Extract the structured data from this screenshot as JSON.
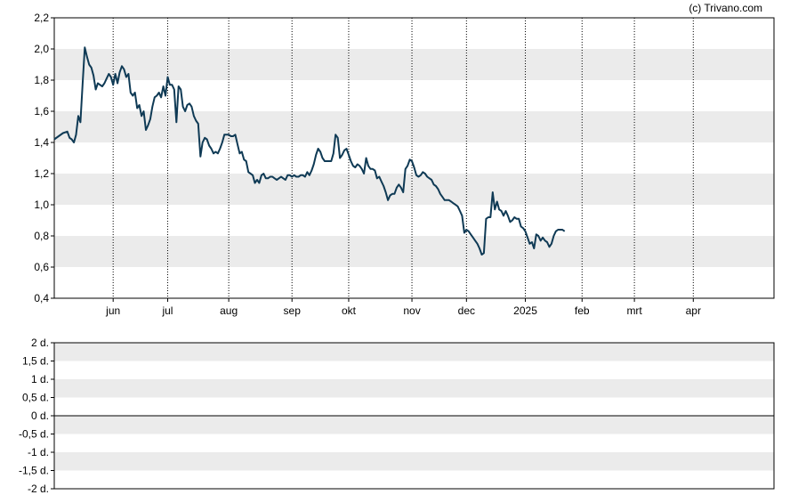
{
  "copyright": "(c) Trivano.com",
  "colors": {
    "line": "#0f3a55",
    "band": "#ebebeb",
    "frame": "#000000",
    "grid": "#000000"
  },
  "chart_data": [
    {
      "type": "line",
      "x_tick_labels": [
        "jun",
        "jul",
        "aug",
        "sep",
        "okt",
        "nov",
        "dec",
        "2025",
        "feb",
        "mrt",
        "apr"
      ],
      "y_tick_labels": [
        "0,4",
        "0,6",
        "0,8",
        "1,0",
        "1,2",
        "1,4",
        "1,6",
        "1,8",
        "2,0",
        "2,2"
      ],
      "ylim": [
        0.4,
        2.2
      ],
      "xlim": [
        0,
        330
      ],
      "x_tick_positions": [
        27,
        52,
        80,
        109,
        135,
        164,
        189,
        216,
        242,
        266,
        293
      ],
      "grid": "dotted vertical at month boundaries, alternating horizontal bands",
      "series": [
        {
          "points": [
            [
              0,
              1.42
            ],
            [
              2,
              1.44
            ],
            [
              4,
              1.46
            ],
            [
              6,
              1.47
            ],
            [
              7,
              1.43
            ],
            [
              8,
              1.42
            ],
            [
              9,
              1.4
            ],
            [
              10,
              1.45
            ],
            [
              11,
              1.57
            ],
            [
              12,
              1.53
            ],
            [
              13,
              1.78
            ],
            [
              14,
              2.01
            ],
            [
              15,
              1.95
            ],
            [
              16,
              1.9
            ],
            [
              17,
              1.88
            ],
            [
              18,
              1.83
            ],
            [
              19,
              1.74
            ],
            [
              20,
              1.78
            ],
            [
              21,
              1.77
            ],
            [
              22,
              1.76
            ],
            [
              23,
              1.78
            ],
            [
              24,
              1.81
            ],
            [
              25,
              1.84
            ],
            [
              26,
              1.82
            ],
            [
              27,
              1.77
            ],
            [
              28,
              1.84
            ],
            [
              29,
              1.78
            ],
            [
              30,
              1.85
            ],
            [
              31,
              1.89
            ],
            [
              32,
              1.87
            ],
            [
              33,
              1.82
            ],
            [
              34,
              1.84
            ],
            [
              35,
              1.72
            ],
            [
              36,
              1.7
            ],
            [
              37,
              1.72
            ],
            [
              38,
              1.62
            ],
            [
              39,
              1.64
            ],
            [
              40,
              1.57
            ],
            [
              41,
              1.6
            ],
            [
              42,
              1.48
            ],
            [
              43,
              1.51
            ],
            [
              44,
              1.55
            ],
            [
              45,
              1.63
            ],
            [
              46,
              1.69
            ],
            [
              47,
              1.7
            ],
            [
              48,
              1.72
            ],
            [
              49,
              1.69
            ],
            [
              50,
              1.76
            ],
            [
              51,
              1.7
            ],
            [
              52,
              1.82
            ],
            [
              53,
              1.77
            ],
            [
              54,
              1.77
            ],
            [
              55,
              1.74
            ],
            [
              56,
              1.53
            ],
            [
              57,
              1.76
            ],
            [
              58,
              1.74
            ],
            [
              59,
              1.63
            ],
            [
              60,
              1.6
            ],
            [
              61,
              1.64
            ],
            [
              62,
              1.65
            ],
            [
              63,
              1.63
            ],
            [
              64,
              1.57
            ],
            [
              65,
              1.54
            ],
            [
              66,
              1.52
            ],
            [
              67,
              1.31
            ],
            [
              68,
              1.4
            ],
            [
              69,
              1.43
            ],
            [
              70,
              1.42
            ],
            [
              71,
              1.38
            ],
            [
              72,
              1.36
            ],
            [
              73,
              1.33
            ],
            [
              74,
              1.34
            ],
            [
              75,
              1.33
            ],
            [
              76,
              1.36
            ],
            [
              77,
              1.4
            ],
            [
              78,
              1.45
            ],
            [
              79,
              1.45
            ],
            [
              80,
              1.45
            ],
            [
              81,
              1.44
            ],
            [
              82,
              1.44
            ],
            [
              83,
              1.45
            ],
            [
              84,
              1.39
            ],
            [
              85,
              1.33
            ],
            [
              86,
              1.34
            ],
            [
              87,
              1.29
            ],
            [
              88,
              1.28
            ],
            [
              89,
              1.21
            ],
            [
              90,
              1.2
            ],
            [
              91,
              1.19
            ],
            [
              92,
              1.14
            ],
            [
              93,
              1.16
            ],
            [
              94,
              1.14
            ],
            [
              95,
              1.19
            ],
            [
              96,
              1.2
            ],
            [
              97,
              1.17
            ],
            [
              98,
              1.17
            ],
            [
              99,
              1.18
            ],
            [
              100,
              1.18
            ],
            [
              101,
              1.17
            ],
            [
              102,
              1.16
            ],
            [
              103,
              1.17
            ],
            [
              104,
              1.18
            ],
            [
              105,
              1.17
            ],
            [
              106,
              1.16
            ],
            [
              107,
              1.19
            ],
            [
              108,
              1.19
            ],
            [
              109,
              1.18
            ],
            [
              110,
              1.19
            ],
            [
              111,
              1.18
            ],
            [
              112,
              1.18
            ],
            [
              113,
              1.19
            ],
            [
              114,
              1.19
            ],
            [
              115,
              1.18
            ],
            [
              116,
              1.21
            ],
            [
              117,
              1.19
            ],
            [
              118,
              1.22
            ],
            [
              119,
              1.26
            ],
            [
              120,
              1.32
            ],
            [
              121,
              1.36
            ],
            [
              122,
              1.34
            ],
            [
              123,
              1.3
            ],
            [
              124,
              1.28
            ],
            [
              125,
              1.28
            ],
            [
              126,
              1.28
            ],
            [
              127,
              1.28
            ],
            [
              128,
              1.33
            ],
            [
              129,
              1.45
            ],
            [
              130,
              1.43
            ],
            [
              131,
              1.3
            ],
            [
              132,
              1.32
            ],
            [
              133,
              1.35
            ],
            [
              134,
              1.36
            ],
            [
              135,
              1.32
            ],
            [
              136,
              1.28
            ],
            [
              137,
              1.25
            ],
            [
              138,
              1.24
            ],
            [
              139,
              1.26
            ],
            [
              140,
              1.25
            ],
            [
              141,
              1.23
            ],
            [
              142,
              1.2
            ],
            [
              143,
              1.3
            ],
            [
              144,
              1.25
            ],
            [
              145,
              1.23
            ],
            [
              146,
              1.23
            ],
            [
              147,
              1.22
            ],
            [
              148,
              1.17
            ],
            [
              149,
              1.18
            ],
            [
              150,
              1.15
            ],
            [
              151,
              1.12
            ],
            [
              152,
              1.08
            ],
            [
              153,
              1.03
            ],
            [
              154,
              1.06
            ],
            [
              155,
              1.07
            ],
            [
              156,
              1.07
            ],
            [
              157,
              1.11
            ],
            [
              158,
              1.13
            ],
            [
              159,
              1.11
            ],
            [
              160,
              1.08
            ],
            [
              161,
              1.23
            ],
            [
              162,
              1.25
            ],
            [
              163,
              1.29
            ],
            [
              164,
              1.28
            ],
            [
              165,
              1.24
            ],
            [
              166,
              1.19
            ],
            [
              167,
              1.18
            ],
            [
              168,
              1.19
            ],
            [
              169,
              1.21
            ],
            [
              170,
              1.2
            ],
            [
              171,
              1.18
            ],
            [
              172,
              1.17
            ],
            [
              173,
              1.16
            ],
            [
              174,
              1.13
            ],
            [
              175,
              1.12
            ],
            [
              176,
              1.1
            ],
            [
              177,
              1.07
            ],
            [
              178,
              1.05
            ],
            [
              179,
              1.03
            ],
            [
              180,
              1.03
            ],
            [
              181,
              1.03
            ],
            [
              182,
              1.02
            ],
            [
              183,
              1.01
            ],
            [
              184,
              1.0
            ],
            [
              185,
              0.99
            ],
            [
              186,
              0.96
            ],
            [
              187,
              0.93
            ],
            [
              188,
              0.82
            ],
            [
              189,
              0.84
            ],
            [
              190,
              0.83
            ],
            [
              191,
              0.81
            ],
            [
              192,
              0.79
            ],
            [
              193,
              0.77
            ],
            [
              194,
              0.75
            ],
            [
              195,
              0.72
            ],
            [
              196,
              0.68
            ],
            [
              197,
              0.69
            ],
            [
              198,
              0.91
            ],
            [
              199,
              0.92
            ],
            [
              200,
              0.92
            ],
            [
              201,
              1.08
            ],
            [
              202,
              0.97
            ],
            [
              203,
              1.02
            ],
            [
              204,
              0.97
            ],
            [
              205,
              0.96
            ],
            [
              206,
              0.93
            ],
            [
              207,
              0.96
            ],
            [
              208,
              0.93
            ],
            [
              209,
              0.89
            ],
            [
              210,
              0.9
            ],
            [
              211,
              0.92
            ],
            [
              212,
              0.91
            ],
            [
              213,
              0.91
            ],
            [
              214,
              0.86
            ],
            [
              215,
              0.85
            ],
            [
              216,
              0.83
            ],
            [
              217,
              0.79
            ],
            [
              218,
              0.75
            ],
            [
              219,
              0.76
            ],
            [
              220,
              0.72
            ],
            [
              221,
              0.81
            ],
            [
              222,
              0.8
            ],
            [
              223,
              0.77
            ],
            [
              224,
              0.79
            ],
            [
              225,
              0.77
            ],
            [
              226,
              0.76
            ],
            [
              227,
              0.73
            ],
            [
              228,
              0.75
            ],
            [
              229,
              0.8
            ],
            [
              230,
              0.83
            ],
            [
              231,
              0.84
            ],
            [
              232,
              0.84
            ],
            [
              233,
              0.84
            ],
            [
              234,
              0.83
            ]
          ]
        }
      ]
    },
    {
      "type": "line",
      "y_tick_labels": [
        "2 d.",
        "1,5 d.",
        "1 d.",
        "0,5 d.",
        "0 d.",
        "-0,5 d.",
        "-1 d.",
        "-1,5 d.",
        "-2 d."
      ],
      "ylim": [
        -2,
        2
      ],
      "grid": "alternating horizontal bands, zero line",
      "series": []
    }
  ]
}
